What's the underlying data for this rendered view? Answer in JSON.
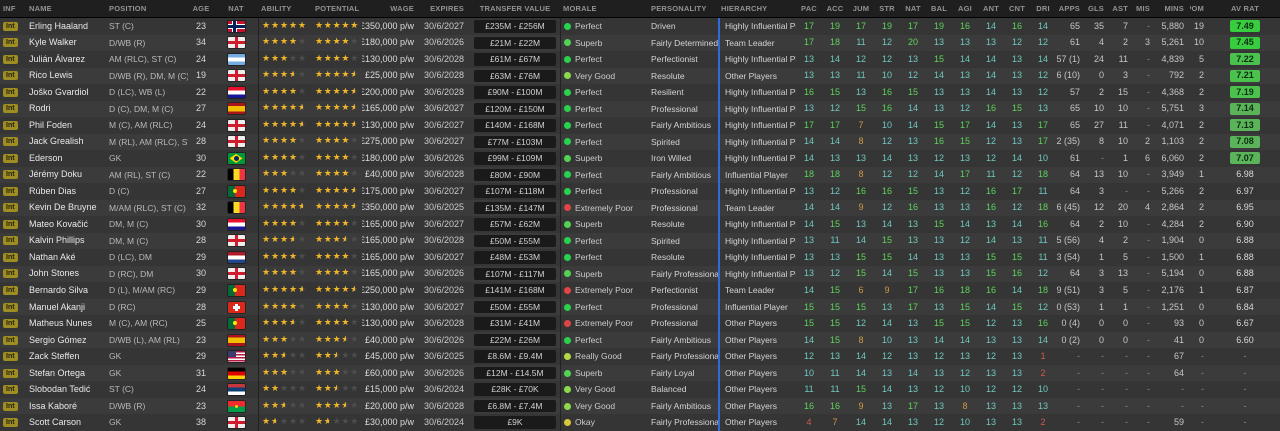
{
  "table": {
    "columns": [
      "INF",
      "NAME",
      "POSITION",
      "AGE",
      "NAT",
      "ABILITY",
      "POTENTIAL",
      "WAGE",
      "EXPIRES",
      "TRANSFER VALUE",
      "MORALE",
      "PERSONALITY",
      "HIERARCHY",
      "PAC",
      "ACC",
      "JUM",
      "STR",
      "NAT",
      "BAL",
      "AGI",
      "ANT",
      "CNT",
      "DRI",
      "APPS",
      "GLS",
      "AST",
      "G. MIS",
      "MINS",
      "POM",
      "AV RAT"
    ]
  },
  "attribute_keys": [
    "PAC",
    "ACC",
    "JUM",
    "STR",
    "NAT",
    "BAL",
    "AGI",
    "ANT",
    "CNT",
    "DRI"
  ],
  "colors": {
    "hierarchy_divider": "#2d6bdf",
    "attr_high": "#5ed35c",
    "attr_mid": "#6fc9c0",
    "attr_low": "#cf9b44",
    "attr_very_low": "#d05a4e",
    "rating_badge_high": "#37cd3f",
    "rating_badge_mid": "#4cc24e",
    "rating_badge_low": "#5bb35a"
  },
  "morale_colors": {
    "Perfect": "#29d24e",
    "Superb": "#53d153",
    "Very Good": "#8cda4b",
    "Really Good": "#b4d944",
    "Okay": "#d9c83c",
    "Extremely Poor": "#e04545"
  },
  "players": [
    {
      "inf": "Int",
      "name": "Erling Haaland",
      "position": "ST (C)",
      "age": "23",
      "nat": "NOR",
      "ability": 5,
      "potential": 5,
      "wage": "£350,000 p/w",
      "expires": "30/6/2027",
      "transfer_value": "£235M - £256M",
      "morale": "Perfect",
      "personality": "Driven",
      "hierarchy": "Highly Influential Player",
      "attributes": [
        17,
        19,
        17,
        19,
        17,
        19,
        16,
        14,
        16,
        14
      ],
      "apps": "65",
      "gls": "35",
      "ast": "7",
      "g_mis": "-",
      "mins": "5,880",
      "pom": "19",
      "av_rat": "7.49"
    },
    {
      "inf": "Int",
      "name": "Kyle Walker",
      "position": "D/WB (R)",
      "age": "34",
      "nat": "ENG",
      "ability": 4,
      "potential": 4,
      "wage": "£180,000 p/w",
      "expires": "30/6/2026",
      "transfer_value": "£21M - £22M",
      "morale": "Superb",
      "personality": "Fairly Determined",
      "hierarchy": "Team Leader",
      "attributes": [
        17,
        18,
        11,
        12,
        20,
        13,
        13,
        13,
        12,
        12
      ],
      "apps": "61",
      "gls": "4",
      "ast": "2",
      "g_mis": "3",
      "mins": "5,261",
      "pom": "10",
      "av_rat": "7.45"
    },
    {
      "inf": "Int",
      "name": "Julián Álvarez",
      "position": "AM (RLC), ST (C)",
      "age": "24",
      "nat": "ARG",
      "ability": 3,
      "potential": 4,
      "wage": "£130,000 p/w",
      "expires": "30/6/2028",
      "transfer_value": "£61M - £67M",
      "morale": "Perfect",
      "personality": "Perfectionist",
      "hierarchy": "Highly Influential Player",
      "attributes": [
        13,
        14,
        12,
        12,
        13,
        15,
        14,
        14,
        13,
        14
      ],
      "apps": "57 (1)",
      "gls": "24",
      "ast": "11",
      "g_mis": "-",
      "mins": "4,839",
      "pom": "5",
      "av_rat": "7.22"
    },
    {
      "inf": "Int",
      "name": "Rico Lewis",
      "position": "D/WB (R), DM, M (C)",
      "age": "19",
      "nat": "ENG",
      "ability": 3.5,
      "potential": 4.5,
      "wage": "£25,000 p/w",
      "expires": "30/6/2028",
      "transfer_value": "£63M - £76M",
      "morale": "Very Good",
      "personality": "Resolute",
      "hierarchy": "Other Players",
      "attributes": [
        13,
        13,
        11,
        10,
        12,
        14,
        13,
        14,
        13,
        12
      ],
      "apps": "6 (10)",
      "gls": "0",
      "ast": "3",
      "g_mis": "-",
      "mins": "792",
      "pom": "2",
      "av_rat": "7.21"
    },
    {
      "inf": "Int",
      "name": "Joško Gvardiol",
      "position": "D (LC), WB (L)",
      "age": "22",
      "nat": "CRO",
      "ability": 4,
      "potential": 4.5,
      "wage": "£200,000 p/w",
      "expires": "30/6/2028",
      "transfer_value": "£90M - £100M",
      "morale": "Perfect",
      "personality": "Resilient",
      "hierarchy": "Highly Influential Player",
      "attributes": [
        16,
        15,
        13,
        16,
        15,
        13,
        13,
        14,
        13,
        12
      ],
      "apps": "57",
      "gls": "2",
      "ast": "15",
      "g_mis": "-",
      "mins": "4,368",
      "pom": "2",
      "av_rat": "7.19"
    },
    {
      "inf": "Int",
      "name": "Rodri",
      "position": "D (C), DM, M (C)",
      "age": "27",
      "nat": "ESP",
      "ability": 4.5,
      "potential": 4.5,
      "wage": "£165,000 p/w",
      "expires": "30/6/2027",
      "transfer_value": "£120M - £150M",
      "morale": "Perfect",
      "personality": "Professional",
      "hierarchy": "Highly Influential Player",
      "attributes": [
        13,
        12,
        15,
        16,
        14,
        13,
        12,
        16,
        15,
        13
      ],
      "apps": "65",
      "gls": "10",
      "ast": "10",
      "g_mis": "-",
      "mins": "5,751",
      "pom": "3",
      "av_rat": "7.14"
    },
    {
      "inf": "Int",
      "name": "Phil Foden",
      "position": "M (C), AM (RLC)",
      "age": "24",
      "nat": "ENG",
      "ability": 4.5,
      "potential": 4.5,
      "wage": "£130,000 p/w",
      "expires": "30/6/2027",
      "transfer_value": "£140M - £168M",
      "morale": "Perfect",
      "personality": "Fairly Ambitious",
      "hierarchy": "Highly Influential Player",
      "attributes": [
        17,
        17,
        7,
        10,
        14,
        15,
        17,
        14,
        13,
        17
      ],
      "apps": "65",
      "gls": "27",
      "ast": "11",
      "g_mis": "-",
      "mins": "4,071",
      "pom": "2",
      "av_rat": "7.13"
    },
    {
      "inf": "Int",
      "name": "Jack Grealish",
      "position": "M (RL), AM (RLC), ST (C)",
      "age": "28",
      "nat": "ENG",
      "ability": 4,
      "potential": 4,
      "wage": "£275,000 p/w",
      "expires": "30/6/2027",
      "transfer_value": "£77M - £103M",
      "morale": "Perfect",
      "personality": "Spirited",
      "hierarchy": "Highly Influential Player",
      "attributes": [
        14,
        14,
        8,
        12,
        13,
        16,
        15,
        12,
        13,
        17
      ],
      "apps": "2 (35)",
      "gls": "8",
      "ast": "10",
      "g_mis": "2",
      "mins": "1,103",
      "pom": "2",
      "av_rat": "7.08"
    },
    {
      "inf": "Int",
      "name": "Ederson",
      "position": "GK",
      "age": "30",
      "nat": "BRA",
      "ability": 4,
      "potential": 4,
      "wage": "£180,000 p/w",
      "expires": "30/6/2026",
      "transfer_value": "£99M - £109M",
      "morale": "Superb",
      "personality": "Iron Willed",
      "hierarchy": "Highly Influential Player",
      "attributes": [
        14,
        13,
        13,
        14,
        13,
        12,
        13,
        12,
        14,
        10
      ],
      "apps": "61",
      "gls": "-",
      "ast": "1",
      "g_mis": "6",
      "mins": "6,060",
      "pom": "2",
      "av_rat": "7.07"
    },
    {
      "inf": "Int",
      "name": "Jérémy Doku",
      "position": "AM (RL), ST (C)",
      "age": "22",
      "nat": "BEL",
      "ability": 3,
      "potential": 4,
      "wage": "£40,000 p/w",
      "expires": "30/6/2028",
      "transfer_value": "£80M - £90M",
      "morale": "Perfect",
      "personality": "Fairly Ambitious",
      "hierarchy": "Influential Player",
      "attributes": [
        18,
        18,
        8,
        12,
        12,
        14,
        17,
        11,
        12,
        18
      ],
      "apps": "64",
      "gls": "13",
      "ast": "10",
      "g_mis": "-",
      "mins": "3,949",
      "pom": "1",
      "av_rat": "6.98"
    },
    {
      "inf": "Int",
      "name": "Rúben Dias",
      "position": "D (C)",
      "age": "27",
      "nat": "POR",
      "ability": 4,
      "potential": 4.5,
      "wage": "£175,000 p/w",
      "expires": "30/6/2027",
      "transfer_value": "£107M - £118M",
      "morale": "Perfect",
      "personality": "Professional",
      "hierarchy": "Highly Influential Player",
      "attributes": [
        13,
        12,
        16,
        16,
        15,
        13,
        12,
        16,
        17,
        11
      ],
      "apps": "64",
      "gls": "3",
      "ast": "-",
      "g_mis": "-",
      "mins": "5,266",
      "pom": "2",
      "av_rat": "6.97"
    },
    {
      "inf": "Int",
      "name": "Kevin De Bruyne",
      "position": "M/AM (RLC), ST (C)",
      "age": "32",
      "nat": "BEL",
      "ability": 4.5,
      "potential": 4.5,
      "wage": "£350,000 p/w",
      "expires": "30/6/2025",
      "transfer_value": "£135M - £147M",
      "morale": "Extremely Poor",
      "personality": "Professional",
      "hierarchy": "Team Leader",
      "attributes": [
        14,
        14,
        9,
        12,
        16,
        13,
        13,
        16,
        12,
        18
      ],
      "apps": "16 (45)",
      "gls": "12",
      "ast": "20",
      "g_mis": "4",
      "mins": "2,864",
      "pom": "2",
      "av_rat": "6.95"
    },
    {
      "inf": "Int",
      "name": "Mateo Kovačić",
      "position": "DM, M (C)",
      "age": "30",
      "nat": "CRO",
      "ability": 4,
      "potential": 4,
      "wage": "£165,000 p/w",
      "expires": "30/6/2027",
      "transfer_value": "£57M - £62M",
      "morale": "Superb",
      "personality": "Resolute",
      "hierarchy": "Highly Influential Player",
      "attributes": [
        14,
        15,
        13,
        14,
        13,
        15,
        14,
        13,
        14,
        16
      ],
      "apps": "64",
      "gls": "2",
      "ast": "10",
      "g_mis": "-",
      "mins": "4,284",
      "pom": "2",
      "av_rat": "6.90"
    },
    {
      "inf": "Int",
      "name": "Kalvin Phillips",
      "position": "DM, M (C)",
      "age": "28",
      "nat": "ENG",
      "ability": 3.5,
      "potential": 3.5,
      "wage": "£165,000 p/w",
      "expires": "30/6/2028",
      "transfer_value": "£50M - £55M",
      "morale": "Perfect",
      "personality": "Spirited",
      "hierarchy": "Highly Influential Player",
      "attributes": [
        13,
        11,
        14,
        15,
        13,
        13,
        12,
        14,
        13,
        11
      ],
      "apps": "5 (56)",
      "gls": "4",
      "ast": "2",
      "g_mis": "-",
      "mins": "1,904",
      "pom": "0",
      "av_rat": "6.88"
    },
    {
      "inf": "Int",
      "name": "Nathan Aké",
      "position": "D (LC), DM",
      "age": "29",
      "nat": "NED",
      "ability": 4,
      "potential": 4,
      "wage": "£165,000 p/w",
      "expires": "30/6/2027",
      "transfer_value": "£48M - £53M",
      "morale": "Perfect",
      "personality": "Resolute",
      "hierarchy": "Highly Influential Player",
      "attributes": [
        13,
        13,
        15,
        15,
        14,
        13,
        13,
        15,
        15,
        11
      ],
      "apps": "3 (54)",
      "gls": "1",
      "ast": "5",
      "g_mis": "-",
      "mins": "1,500",
      "pom": "1",
      "av_rat": "6.88"
    },
    {
      "inf": "Int",
      "name": "John Stones",
      "position": "D (RC), DM",
      "age": "30",
      "nat": "ENG",
      "ability": 4,
      "potential": 4,
      "wage": "£165,000 p/w",
      "expires": "30/6/2026",
      "transfer_value": "£107M - £117M",
      "morale": "Superb",
      "personality": "Fairly Professional",
      "hierarchy": "Highly Influential Player",
      "attributes": [
        13,
        12,
        15,
        14,
        15,
        13,
        13,
        15,
        16,
        12
      ],
      "apps": "64",
      "gls": "3",
      "ast": "13",
      "g_mis": "-",
      "mins": "5,194",
      "pom": "0",
      "av_rat": "6.88"
    },
    {
      "inf": "Int",
      "name": "Bernardo Silva",
      "position": "D (L), M/AM (RC)",
      "age": "29",
      "nat": "POR",
      "ability": 4.5,
      "potential": 4.5,
      "wage": "£250,000 p/w",
      "expires": "30/6/2026",
      "transfer_value": "£141M - £168M",
      "morale": "Extremely Poor",
      "personality": "Perfectionist",
      "hierarchy": "Team Leader",
      "attributes": [
        14,
        15,
        6,
        9,
        17,
        16,
        18,
        16,
        14,
        18
      ],
      "apps": "9 (51)",
      "gls": "3",
      "ast": "5",
      "g_mis": "-",
      "mins": "2,176",
      "pom": "1",
      "av_rat": "6.87"
    },
    {
      "inf": "Int",
      "name": "Manuel Akanji",
      "position": "D (RC)",
      "age": "28",
      "nat": "SUI",
      "ability": 4,
      "potential": 4,
      "wage": "£130,000 p/w",
      "expires": "30/6/2027",
      "transfer_value": "£50M - £55M",
      "morale": "Perfect",
      "personality": "Professional",
      "hierarchy": "Influential Player",
      "attributes": [
        15,
        15,
        15,
        13,
        17,
        13,
        15,
        14,
        15,
        12
      ],
      "apps": "0 (53)",
      "gls": "1",
      "ast": "1",
      "g_mis": "-",
      "mins": "1,251",
      "pom": "0",
      "av_rat": "6.84"
    },
    {
      "inf": "Int",
      "name": "Matheus Nunes",
      "position": "M (C), AM (RC)",
      "age": "25",
      "nat": "POR",
      "ability": 3.5,
      "potential": 4,
      "wage": "£130,000 p/w",
      "expires": "30/6/2028",
      "transfer_value": "£31M - £41M",
      "morale": "Extremely Poor",
      "personality": "Professional",
      "hierarchy": "Other Players",
      "attributes": [
        15,
        15,
        12,
        14,
        13,
        15,
        15,
        12,
        13,
        16
      ],
      "apps": "0 (4)",
      "gls": "0",
      "ast": "0",
      "g_mis": "-",
      "mins": "93",
      "pom": "0",
      "av_rat": "6.67"
    },
    {
      "inf": "Int",
      "name": "Sergio Gómez",
      "position": "D/WB (L), AM (RL)",
      "age": "23",
      "nat": "ESP",
      "ability": 3,
      "potential": 3.5,
      "wage": "£40,000 p/w",
      "expires": "30/6/2026",
      "transfer_value": "£22M - £26M",
      "morale": "Perfect",
      "personality": "Fairly Ambitious",
      "hierarchy": "Other Players",
      "attributes": [
        14,
        15,
        8,
        10,
        13,
        14,
        14,
        13,
        13,
        14
      ],
      "apps": "0 (2)",
      "gls": "0",
      "ast": "0",
      "g_mis": "-",
      "mins": "41",
      "pom": "0",
      "av_rat": "6.60"
    },
    {
      "inf": "Int",
      "name": "Zack Steffen",
      "position": "GK",
      "age": "29",
      "nat": "USA",
      "ability": 2.5,
      "potential": 2.5,
      "wage": "£45,000 p/w",
      "expires": "30/6/2025",
      "transfer_value": "£8.6M - £9.4M",
      "morale": "Really Good",
      "personality": "Fairly Professional",
      "hierarchy": "Other Players",
      "attributes": [
        12,
        13,
        14,
        12,
        13,
        12,
        13,
        12,
        13,
        1
      ],
      "apps": "-",
      "gls": "-",
      "ast": "-",
      "g_mis": "-",
      "mins": "67",
      "pom": "-",
      "av_rat": "-"
    },
    {
      "inf": "Int",
      "name": "Stefan Ortega",
      "position": "GK",
      "age": "31",
      "nat": "GER",
      "ability": 3,
      "potential": 3,
      "wage": "£60,000 p/w",
      "expires": "30/6/2026",
      "transfer_value": "£12M - £14.5M",
      "morale": "Superb",
      "personality": "Fairly Loyal",
      "hierarchy": "Other Players",
      "attributes": [
        10,
        11,
        14,
        13,
        14,
        13,
        12,
        13,
        13,
        2
      ],
      "apps": "-",
      "gls": "-",
      "ast": "-",
      "g_mis": "-",
      "mins": "64",
      "pom": "-",
      "av_rat": "-"
    },
    {
      "inf": "Int",
      "name": "Slobodan Tedić",
      "position": "ST (C)",
      "age": "24",
      "nat": "SRB",
      "ability": 2,
      "potential": 2.5,
      "wage": "£15,000 p/w",
      "expires": "30/6/2024",
      "transfer_value": "£28K - £70K",
      "morale": "Very Good",
      "personality": "Balanced",
      "hierarchy": "Other Players",
      "attributes": [
        11,
        11,
        15,
        14,
        13,
        12,
        10,
        12,
        12,
        10
      ],
      "apps": "-",
      "gls": "-",
      "ast": "-",
      "g_mis": "-",
      "mins": "-",
      "pom": "-",
      "av_rat": "-"
    },
    {
      "inf": "Int",
      "name": "Issa Kaboré",
      "position": "D/WB (R)",
      "age": "23",
      "nat": "BFA",
      "ability": 2.5,
      "potential": 3.5,
      "wage": "£20,000 p/w",
      "expires": "30/6/2028",
      "transfer_value": "£6.8M - £7.4M",
      "morale": "Very Good",
      "personality": "Fairly Ambitious",
      "hierarchy": "Other Players",
      "attributes": [
        16,
        16,
        9,
        13,
        17,
        13,
        8,
        13,
        13,
        13
      ],
      "apps": "-",
      "gls": "-",
      "ast": "-",
      "g_mis": "-",
      "mins": "-",
      "pom": "-",
      "av_rat": "-"
    },
    {
      "inf": "Int",
      "name": "Scott Carson",
      "position": "GK",
      "age": "38",
      "nat": "ENG",
      "ability": 1.5,
      "potential": 1.5,
      "wage": "£30,000 p/w",
      "expires": "30/6/2024",
      "transfer_value": "£9K",
      "morale": "Okay",
      "personality": "Fairly Professional",
      "hierarchy": "Other Players",
      "attributes": [
        4,
        7,
        14,
        14,
        13,
        12,
        10,
        13,
        13,
        2
      ],
      "apps": "-",
      "gls": "-",
      "ast": "-",
      "g_mis": "-",
      "mins": "59",
      "pom": "-",
      "av_rat": "-"
    }
  ]
}
